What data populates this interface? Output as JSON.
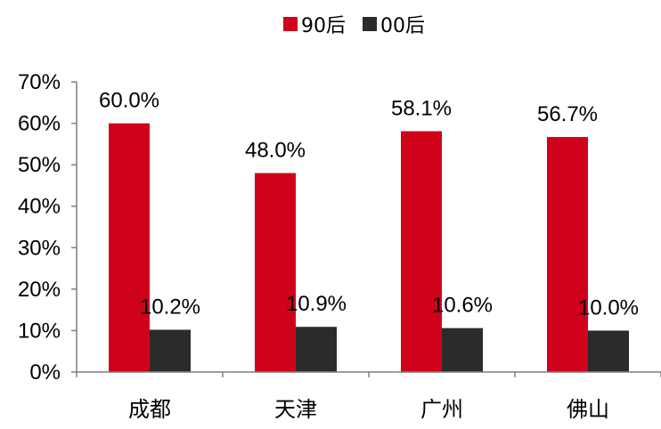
{
  "chart_data": {
    "type": "bar",
    "title": "",
    "xlabel": "",
    "ylabel": "",
    "categories": [
      "成都",
      "天津",
      "广州",
      "佛山"
    ],
    "series": [
      {
        "name": "90后",
        "values": [
          60.0,
          48.0,
          58.1,
          56.7
        ],
        "color": "#d0021b"
      },
      {
        "name": "00后",
        "values": [
          10.2,
          10.9,
          10.6,
          10.0
        ],
        "color": "#2b2b2b"
      }
    ],
    "value_labels": [
      [
        "60.0%",
        "48.0%",
        "58.1%",
        "56.7%"
      ],
      [
        "10.2%",
        "10.9%",
        "10.6%",
        "10.0%"
      ]
    ],
    "y_ticks": [
      0,
      10,
      20,
      30,
      40,
      50,
      60,
      70
    ],
    "y_tick_labels": [
      "0%",
      "10%",
      "20%",
      "30%",
      "40%",
      "50%",
      "60%",
      "70%"
    ],
    "ylim": [
      0,
      70
    ],
    "grid": false,
    "legend_position": "top-center"
  }
}
